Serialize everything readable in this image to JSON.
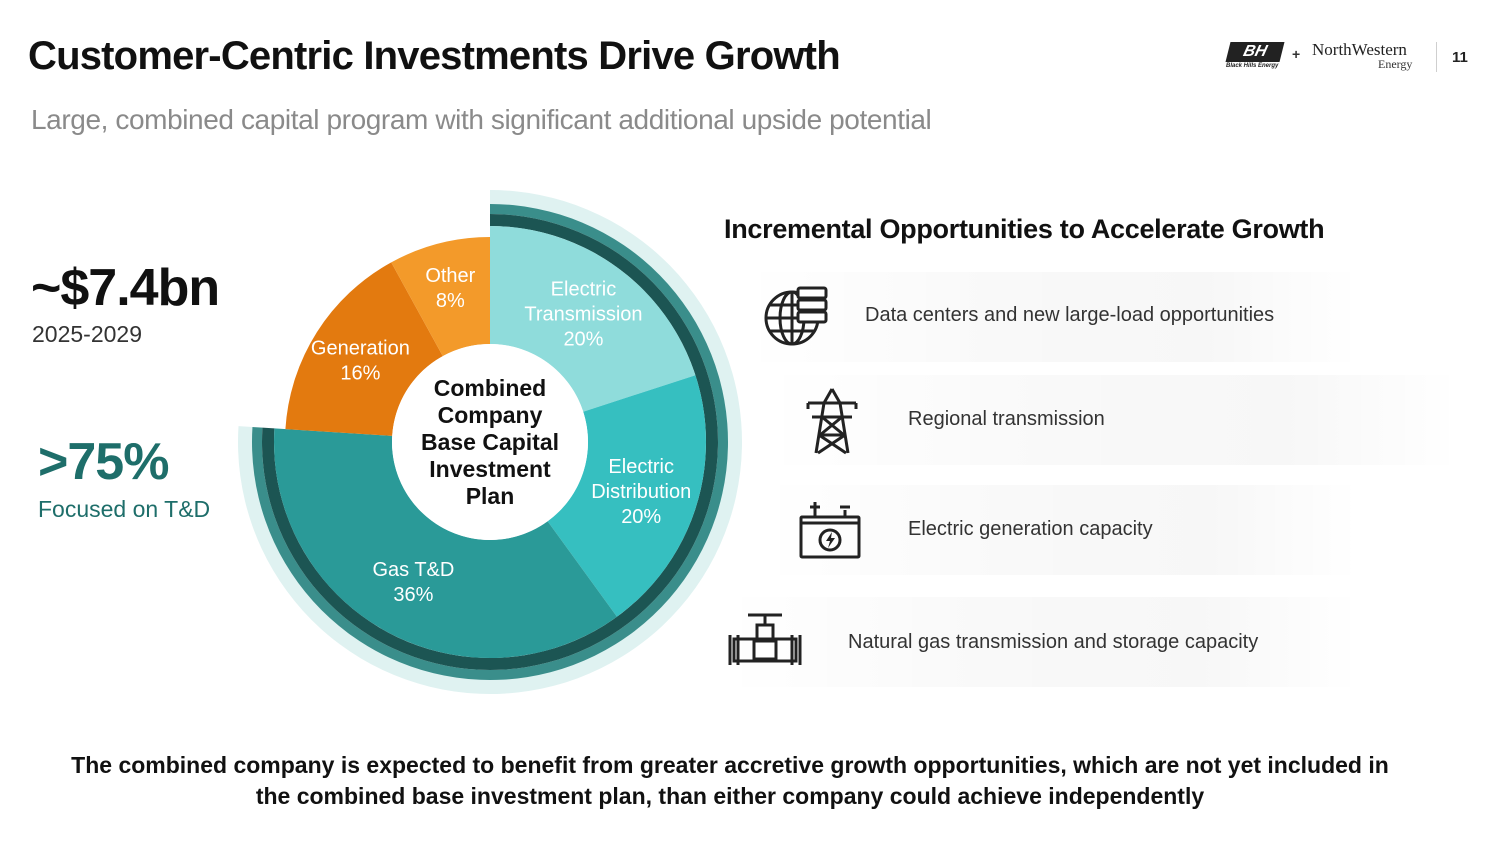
{
  "header": {
    "title": "Customer-Centric Investments Drive Growth",
    "subtitle": "Large, combined capital program with significant additional upside potential",
    "logo_left": "BH",
    "logo_left_small": "Black Hills Energy",
    "logo_plus": "+",
    "logo_right_name": "NorthWestern",
    "logo_right_sub": "Energy",
    "page_number": "11"
  },
  "kpis": {
    "total_value": "~$7.4bn",
    "total_period": "2025-2029",
    "td_value": ">75%",
    "td_label": "Focused on T&D"
  },
  "chart_data": {
    "type": "pie",
    "center_label": [
      "Combined",
      "Company",
      "Base Capital",
      "Investment",
      "Plan"
    ],
    "slices": [
      {
        "label": [
          "Electric",
          "Transmission"
        ],
        "pct_text": "20%",
        "value": 20,
        "color": "#8fdcdb"
      },
      {
        "label": [
          "Electric",
          "Distribution"
        ],
        "pct_text": "20%",
        "value": 20,
        "color": "#36bfc0"
      },
      {
        "label": [
          "Gas T&D"
        ],
        "pct_text": "36%",
        "value": 36,
        "color": "#2a9a98"
      },
      {
        "label": [
          "Generation"
        ],
        "pct_text": "16%",
        "value": 16,
        "color": "#e37a0f"
      },
      {
        "label": [
          "Other"
        ],
        "pct_text": "8%",
        "value": 8,
        "color": "#f39a2a"
      }
    ],
    "td_share": 76,
    "ring_colors": {
      "light": "#dff2f1",
      "mid": "#3a8e8b",
      "dark": "#1c5553"
    }
  },
  "opportunities": {
    "heading": "Incremental Opportunities to Accelerate Growth",
    "items": [
      {
        "icon": "globe-server-icon",
        "label": "Data centers and new large-load opportunities"
      },
      {
        "icon": "transmission-tower-icon",
        "label": "Regional transmission"
      },
      {
        "icon": "battery-icon",
        "label": "Electric generation capacity"
      },
      {
        "icon": "gas-valve-icon",
        "label": "Natural gas transmission and storage capacity"
      }
    ]
  },
  "footer": {
    "line1": "The combined company is expected to benefit from greater accretive growth opportunities, which are not yet included in",
    "line2": "the combined base investment plan, than either company could achieve independently"
  }
}
